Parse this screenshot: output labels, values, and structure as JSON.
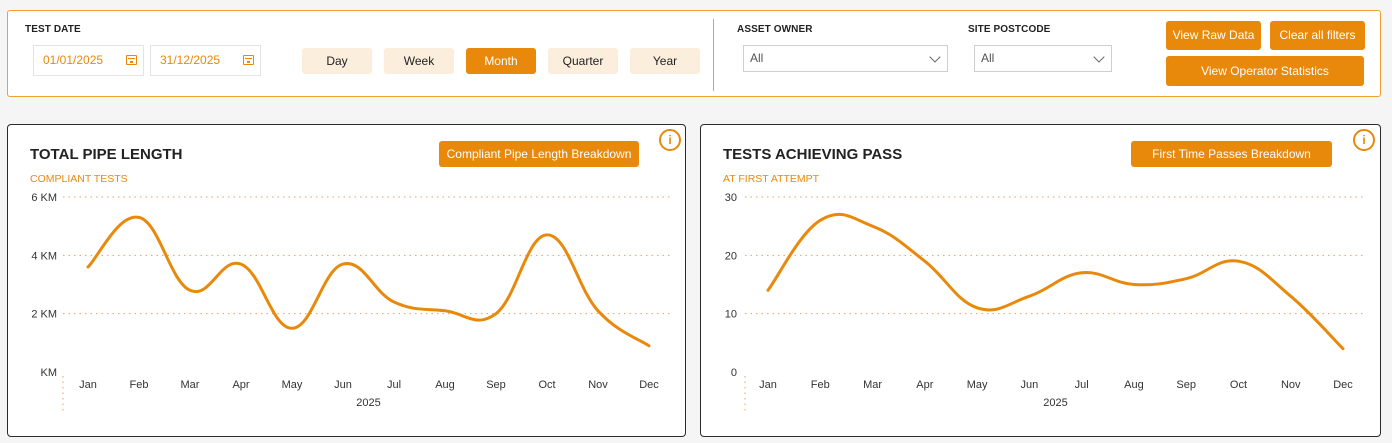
{
  "filters": {
    "test_date_label": "TEST DATE",
    "date_from": "01/01/2025",
    "date_to": "31/12/2025",
    "periods": [
      "Day",
      "Week",
      "Month",
      "Quarter",
      "Year"
    ],
    "active_period": "Month",
    "asset_owner_label": "ASSET OWNER",
    "asset_owner_value": "All",
    "site_postcode_label": "SITE POSTCODE",
    "site_postcode_value": "All",
    "view_raw_label": "View Raw Data",
    "clear_filters_label": "Clear all filters",
    "view_operator_label": "View Operator Statistics"
  },
  "cards": [
    {
      "title": "TOTAL PIPE LENGTH",
      "subtitle": "COMPLIANT TESTS",
      "button_label": "Compliant Pipe Length Breakdown",
      "info_label": "i"
    },
    {
      "title": "TESTS ACHIEVING PASS",
      "subtitle": "AT FIRST ATTEMPT",
      "button_label": "First Time Passes Breakdown",
      "info_label": "i"
    }
  ],
  "chart_data": [
    {
      "type": "line",
      "categories": [
        "Jan",
        "Feb",
        "Mar",
        "Apr",
        "May",
        "Jun",
        "Jul",
        "Aug",
        "Sep",
        "Oct",
        "Nov",
        "Dec"
      ],
      "values": [
        3.6,
        5.3,
        2.8,
        3.7,
        1.5,
        3.7,
        2.4,
        2.1,
        2.0,
        4.7,
        2.1,
        0.9
      ],
      "ylim": [
        0,
        6
      ],
      "yticks": [
        0,
        2,
        4,
        6
      ],
      "ytick_labels": [
        "KM",
        "2 KM",
        "4 KM",
        "6 KM"
      ],
      "xlabel": "2025",
      "grid": true,
      "color": "#e8890c"
    },
    {
      "type": "line",
      "categories": [
        "Jan",
        "Feb",
        "Mar",
        "Apr",
        "May",
        "Jun",
        "Jul",
        "Aug",
        "Sep",
        "Oct",
        "Nov",
        "Dec"
      ],
      "values": [
        14,
        26,
        25,
        19,
        11,
        13,
        17,
        15,
        16,
        19,
        13,
        4
      ],
      "ylim": [
        0,
        30
      ],
      "yticks": [
        0,
        10,
        20,
        30
      ],
      "ytick_labels": [
        "0",
        "10",
        "20",
        "30"
      ],
      "xlabel": "2025",
      "grid": true,
      "color": "#e8890c"
    }
  ]
}
